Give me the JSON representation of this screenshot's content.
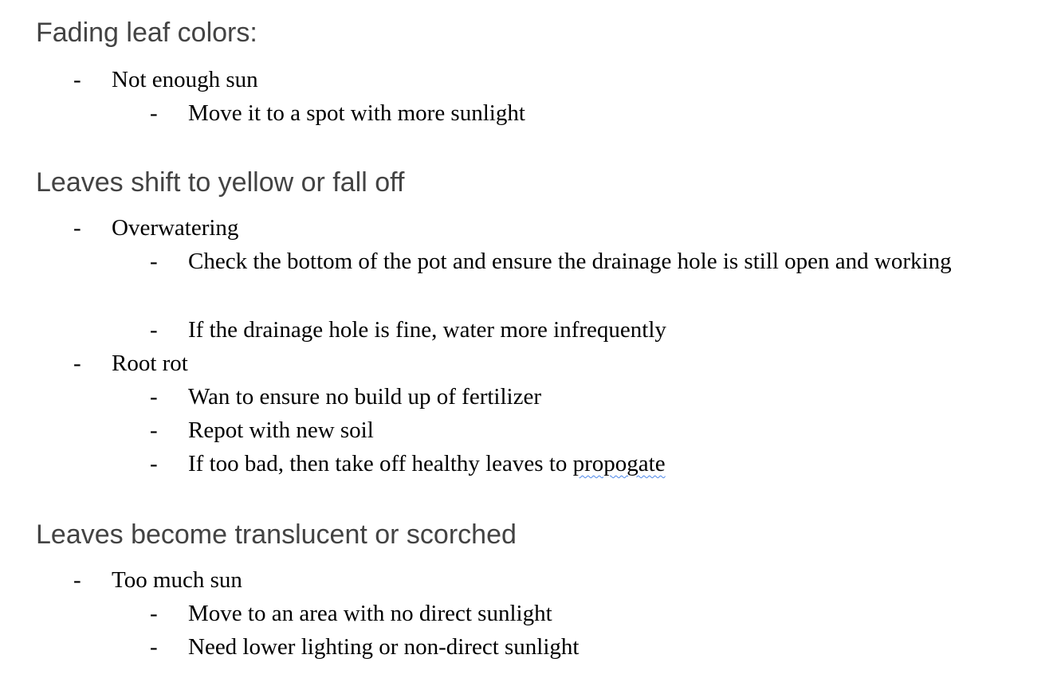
{
  "sections": [
    {
      "heading": "Fading leaf colors:",
      "items": [
        {
          "text": "Not enough sun"
        },
        {
          "text": "Move it to a spot with more sunlight"
        }
      ]
    },
    {
      "heading": "Leaves shift to yellow or fall off",
      "items": [
        {
          "text": "Overwatering"
        },
        {
          "text": "Check the bottom of the pot and ensure the drainage hole is still open and working"
        },
        {
          "text": "If the drainage hole is fine, water more infrequently"
        },
        {
          "text": "Root rot"
        },
        {
          "text": "Wan to ensure no build up of fertilizer"
        },
        {
          "text": "Repot with new soil"
        },
        {
          "text_before": "If too bad, then take off healthy leaves to ",
          "text_misspelled": "propogate"
        }
      ]
    },
    {
      "heading": "Leaves become translucent or scorched",
      "items": [
        {
          "text": "Too much sun"
        },
        {
          "text": "Move to an area with no direct sunlight"
        },
        {
          "text": "Need lower lighting or non-direct sunlight"
        }
      ]
    }
  ],
  "bullet": "-",
  "colors": {
    "heading": "#434343",
    "body": "#000000",
    "spellcheck_underline": "#4a86e8"
  }
}
